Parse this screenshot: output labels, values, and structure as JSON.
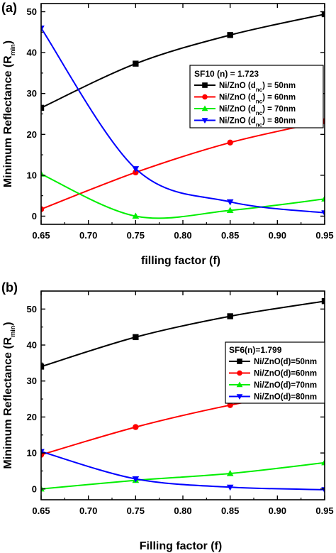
{
  "chart_data": [
    {
      "type": "line",
      "panel_label": "(a)",
      "xlabel": "filling factor (f)",
      "ylabel_main": "Minimum Reflectance (R",
      "ylabel_sub": "min",
      "ylabel_end": ")",
      "xlim": [
        0.65,
        0.95
      ],
      "ylim": [
        -2,
        52
      ],
      "xticks": [
        0.65,
        0.7,
        0.75,
        0.8,
        0.85,
        0.9,
        0.95
      ],
      "xtick_labels": [
        "0.65",
        "0.70",
        "0.75",
        "0.80",
        "0.85",
        "0.90",
        "0.95"
      ],
      "yticks": [
        0,
        10,
        20,
        30,
        40,
        50
      ],
      "ytick_labels": [
        "0",
        "10",
        "20",
        "30",
        "40",
        "50"
      ],
      "legend_title": "SF10 (n) = 1.723",
      "legend_position": "right",
      "grid": false,
      "x": [
        0.65,
        0.75,
        0.85,
        0.95
      ],
      "series": [
        {
          "name": "Ni/ZnO (d",
          "name_sub": "nc",
          "name_end": ") = 50nm",
          "color": "#000000",
          "marker": "square",
          "values": [
            26.5,
            37.3,
            44.3,
            49.4
          ]
        },
        {
          "name": "Ni/ZnO (d",
          "name_sub": "nc",
          "name_end": ") = 60nm",
          "color": "#ff0000",
          "marker": "circle",
          "values": [
            1.7,
            10.7,
            18.0,
            23.2
          ]
        },
        {
          "name": "Ni/ZnO (d",
          "name_sub": "nc",
          "name_end": ") = 70nm",
          "color": "#00ee00",
          "marker": "triangle-up",
          "values": [
            10.3,
            0.0,
            1.4,
            4.2
          ]
        },
        {
          "name": "Ni/ZnO (d",
          "name_sub": "nc",
          "name_end": ") = 80nm",
          "color": "#0000ff",
          "marker": "triangle-down",
          "values": [
            46.0,
            11.6,
            3.5,
            0.8
          ]
        }
      ]
    },
    {
      "type": "line",
      "panel_label": "(b)",
      "xlabel": "Filling factor (f)",
      "ylabel_main": "Minimum Reflectance (R",
      "ylabel_sub": "min",
      "ylabel_end": ")",
      "xlim": [
        0.65,
        0.95
      ],
      "ylim": [
        -3,
        55
      ],
      "xticks": [
        0.65,
        0.7,
        0.75,
        0.8,
        0.85,
        0.9,
        0.95
      ],
      "xtick_labels": [
        "0.65",
        "0.70",
        "0.75",
        "0.80",
        "0.85",
        "0.90",
        "0.95"
      ],
      "yticks": [
        0,
        10,
        20,
        30,
        40,
        50
      ],
      "ytick_labels": [
        "0",
        "10",
        "20",
        "30",
        "40",
        "50"
      ],
      "legend_title": "SF6(n)=1.799",
      "legend_position": "right",
      "grid": false,
      "x": [
        0.65,
        0.75,
        0.85,
        0.95
      ],
      "series": [
        {
          "name": "Ni/ZnO(d)=50nm",
          "color": "#000000",
          "marker": "square",
          "values": [
            34.0,
            42.2,
            48.0,
            52.2
          ]
        },
        {
          "name": "Ni/ZnO(d)=60nm",
          "color": "#ff0000",
          "marker": "circle",
          "values": [
            9.5,
            17.2,
            23.3,
            28.0
          ]
        },
        {
          "name": "Ni/ZnO(d)=70nm",
          "color": "#00ee00",
          "marker": "triangle-up",
          "values": [
            0.0,
            2.4,
            4.3,
            7.3
          ]
        },
        {
          "name": "Ni/ZnO(d)=80nm",
          "color": "#0000ff",
          "marker": "triangle-down",
          "values": [
            10.4,
            2.8,
            0.5,
            -0.2
          ]
        }
      ]
    }
  ]
}
